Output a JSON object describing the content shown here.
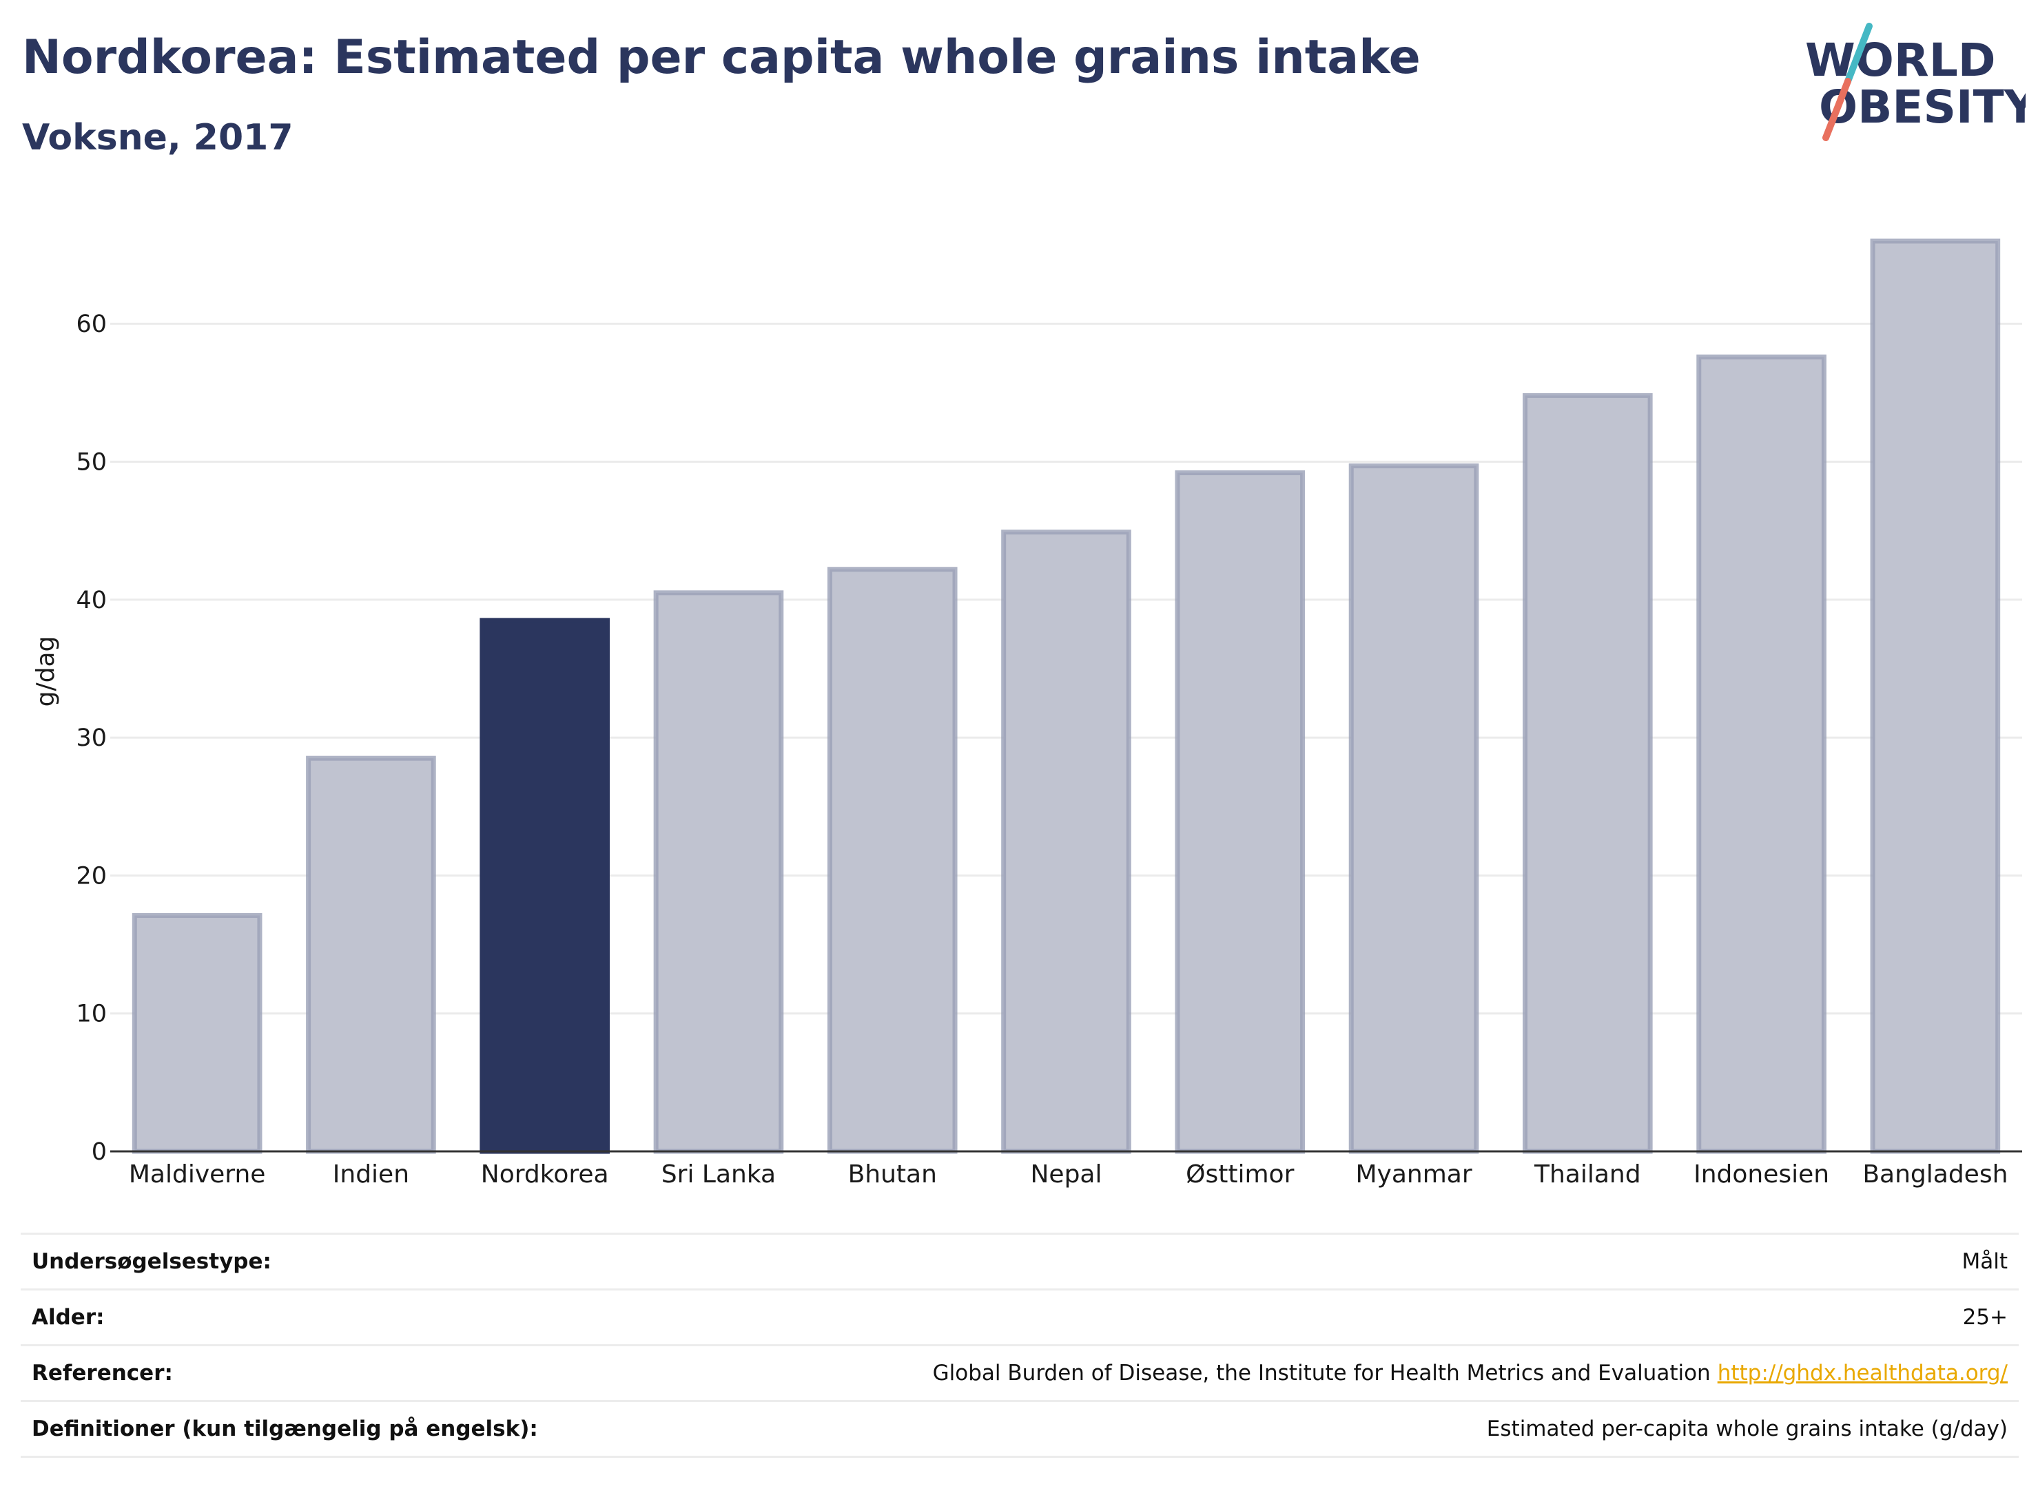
{
  "chart_data": {
    "type": "bar",
    "title": "Nordkorea: Estimated per capita whole grains intake",
    "subtitle": "Voksne, 2017",
    "xlabel": "",
    "ylabel": "g/dag",
    "ylim": [
      0,
      68
    ],
    "yticks": [
      0,
      10,
      20,
      30,
      40,
      50,
      60
    ],
    "grid": true,
    "categories": [
      "Maldiverne",
      "Indien",
      "Nordkorea",
      "Sri Lanka",
      "Bhutan",
      "Nepal",
      "Østtimor",
      "Myanmar",
      "Thailand",
      "Indonesien",
      "Bangladesh"
    ],
    "values": [
      17.1,
      28.5,
      38.5,
      40.5,
      42.2,
      44.9,
      49.2,
      49.7,
      54.8,
      57.6,
      66.0
    ],
    "highlight": "Nordkorea",
    "colors": {
      "highlight": "#2b365e",
      "bar": "#c0c3d0",
      "bar_border": "#9aa0b6",
      "grid": "#ebebeb",
      "axis": "#333333"
    }
  },
  "logo": {
    "line1": "WORLD",
    "line2": "OBESITY",
    "text_color": "#2b365e",
    "slash_color_top": "#45b8c4",
    "slash_color_bottom": "#e8705e"
  },
  "info": [
    {
      "label": "Undersøgelsestype:",
      "value": "Målt"
    },
    {
      "label": "Alder:",
      "value": "25+"
    },
    {
      "label": "Referencer:",
      "value": "Global Burden of Disease, the Institute for Health Metrics and Evaluation",
      "link": "http://ghdx.healthdata.org/"
    },
    {
      "label": "Definitioner (kun tilgængelig på engelsk):",
      "value": "Estimated per-capita whole grains intake (g/day)"
    }
  ]
}
